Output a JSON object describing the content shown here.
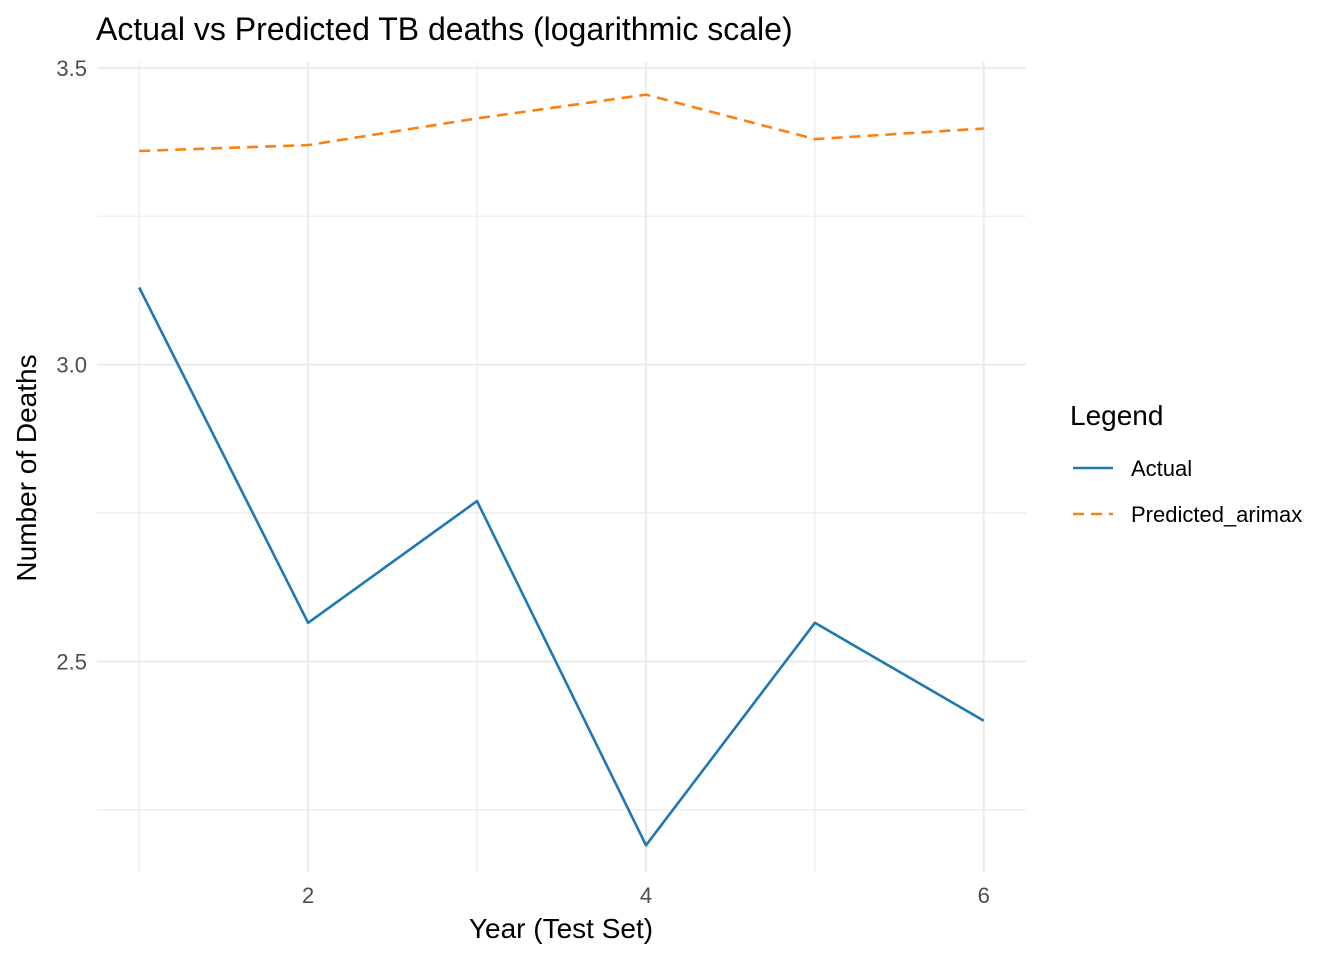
{
  "chart_data": {
    "type": "line",
    "title": "Actual vs Predicted TB deaths (logarithmic scale)",
    "xlabel": "Year (Test Set)",
    "ylabel": "Number of Deaths",
    "x": [
      1,
      2,
      3,
      4,
      5,
      6
    ],
    "xlim": [
      0.75,
      6.25
    ],
    "ylim": [
      2.145,
      3.51
    ],
    "x_ticks": [
      2,
      4,
      6
    ],
    "x_tick_labels": [
      "2",
      "4",
      "6"
    ],
    "y_ticks": [
      2.5,
      3.0,
      3.5
    ],
    "y_tick_labels": [
      "2.5",
      "3.0",
      "3.5"
    ],
    "grid": true,
    "legend": {
      "title": "Legend",
      "placement": "right"
    },
    "series": [
      {
        "name": "Actual",
        "values": [
          3.13,
          2.565,
          2.77,
          2.19,
          2.565,
          2.4
        ],
        "color": "#1f77b4",
        "dash": "solid"
      },
      {
        "name": "Predicted_arimax",
        "values": [
          3.36,
          3.37,
          3.415,
          3.455,
          3.38,
          3.398
        ],
        "color": "#ff7f0e",
        "dash": "dashed"
      }
    ]
  }
}
